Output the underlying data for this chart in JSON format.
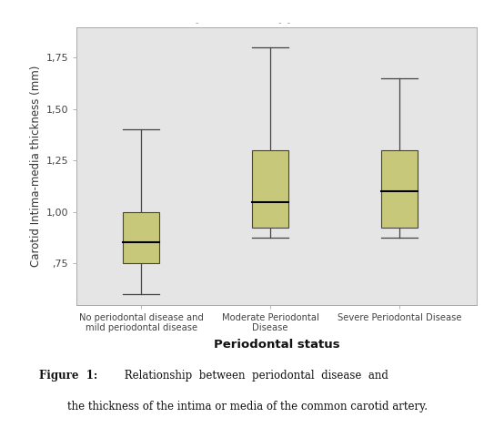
{
  "groups": [
    {
      "label": "No periodontal disease and\nmild periodontal disease",
      "whisker_low": 0.6,
      "q1": 0.75,
      "median": 0.855,
      "q3": 1.0,
      "whisker_high": 1.4
    },
    {
      "label": "Moderate Periodontal\nDisease",
      "whisker_low": 0.875,
      "q1": 0.925,
      "median": 1.05,
      "q3": 1.3,
      "whisker_high": 1.8
    },
    {
      "label": "Severe Periodontal Disease",
      "whisker_low": 0.875,
      "q1": 0.925,
      "median": 1.1,
      "q3": 1.3,
      "whisker_high": 1.65
    }
  ],
  "yticks": [
    0.75,
    1.0,
    1.25,
    1.5,
    1.75
  ],
  "ytick_labels": [
    ",75",
    "1,00",
    "1,25",
    "1,50",
    "1,75"
  ],
  "ylabel": "Carotid Intima-media thickness (mm)",
  "xlabel": "Periodontal status",
  "box_color": "#c8c87a",
  "box_edge_color": "#444444",
  "median_color": "#000000",
  "whisker_color": "#444444",
  "cap_color": "#444444",
  "bg_color": "#e5e5e5",
  "fig_bg_color": "#ffffff",
  "ylim_low": 0.55,
  "ylim_high": 1.9,
  "box_width": 0.28,
  "caption_bold": "Figure  1:",
  "caption_rest": "  Relationship  between  periodontal  disease  and",
  "caption_line2": "the thickness of the intima or media of the common carotid artery."
}
